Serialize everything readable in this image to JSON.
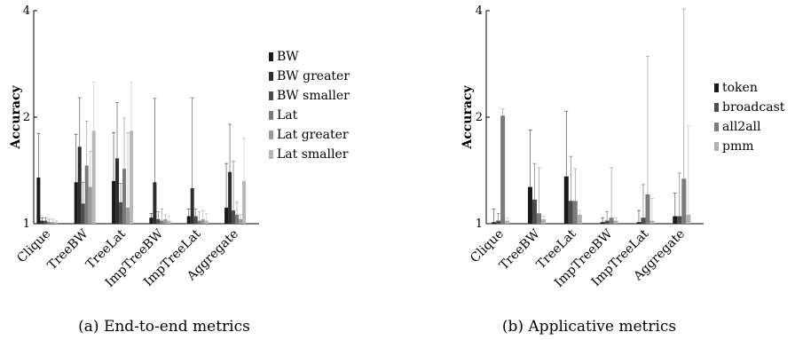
{
  "chart_data": [
    {
      "type": "bar",
      "caption": "(a) End-to-end metrics",
      "ylabel": "Accuracy",
      "ylim": [
        1,
        4
      ],
      "yscale": "log",
      "yticks": [
        "1",
        "2",
        "4"
      ],
      "categories": [
        "Clique",
        "TreeBW",
        "TreeLat",
        "ImpTreeBW",
        "ImpTreeLat",
        "Aggregate"
      ],
      "legend_position": "right",
      "series": [
        {
          "name": "BW",
          "color": "#1a1a1a",
          "values": [
            1.35,
            1.31,
            1.32,
            1.04,
            1.05,
            1.11
          ],
          "err_hi": [
            1.8,
            1.79,
            1.81,
            1.07,
            1.1,
            1.48
          ],
          "err_lo": [
            1.02,
            1.11,
            1.12,
            1.01,
            1.01,
            1.04
          ]
        },
        {
          "name": "BW greater",
          "color": "#2e2e2e",
          "values": [
            1.02,
            1.65,
            1.53,
            1.31,
            1.26,
            1.4
          ],
          "err_hi": [
            1.04,
            2.27,
            2.2,
            2.26,
            2.27,
            1.91
          ],
          "err_lo": [
            1.01,
            1.16,
            1.2,
            1.03,
            1.04,
            1.13
          ]
        },
        {
          "name": "BW smaller",
          "color": "#4d4d4d",
          "values": [
            1.02,
            1.14,
            1.15,
            1.03,
            1.05,
            1.09
          ],
          "err_hi": [
            1.04,
            1.31,
            1.3,
            1.08,
            1.1,
            1.5
          ],
          "err_lo": [
            1.01,
            1.04,
            1.04,
            1.01,
            1.01,
            1.03
          ]
        },
        {
          "name": "Lat",
          "color": "#7a7a7a",
          "values": [
            1.01,
            1.46,
            1.43,
            1.02,
            1.02,
            1.06
          ],
          "err_hi": [
            1.03,
            1.95,
            1.99,
            1.1,
            1.08,
            1.15
          ],
          "err_lo": [
            1.0,
            1.2,
            1.15,
            1.0,
            1.0,
            1.02
          ]
        },
        {
          "name": "Lat greater",
          "color": "#999999",
          "values": [
            1.01,
            1.27,
            1.11,
            1.03,
            1.03,
            1.03
          ],
          "err_hi": [
            1.03,
            1.6,
            1.81,
            1.06,
            1.09,
            1.06
          ],
          "err_lo": [
            1.0,
            1.09,
            1.05,
            1.01,
            1.01,
            1.01
          ]
        },
        {
          "name": "Lat smaller",
          "color": "#b8b8b8",
          "values": [
            1.01,
            1.83,
            1.83,
            1.02,
            1.02,
            1.32
          ],
          "err_hi": [
            1.02,
            2.51,
            2.51,
            1.05,
            1.07,
            1.75
          ],
          "err_lo": [
            1.0,
            1.32,
            1.32,
            1.0,
            1.0,
            1.1
          ]
        }
      ]
    },
    {
      "type": "bar",
      "caption": "(b) Applicative metrics",
      "ylabel": "Accuracy",
      "ylim": [
        1,
        4
      ],
      "yscale": "log",
      "yticks": [
        "1",
        "2",
        "4"
      ],
      "categories": [
        "Clique",
        "TreeBW",
        "TreeLat",
        "ImpTreeBW",
        "ImpTreeLat",
        "Aggregate"
      ],
      "legend_position": "right",
      "series": [
        {
          "name": "token",
          "color": "#1a1a1a",
          "values": [
            1.01,
            1.27,
            1.36,
            1.01,
            1.01,
            1.05
          ],
          "err_hi": [
            1.1,
            1.84,
            2.08,
            1.04,
            1.09,
            1.22
          ],
          "err_lo": [
            1.0,
            1.1,
            1.15,
            1.0,
            1.0,
            1.02
          ]
        },
        {
          "name": "broadcast",
          "color": "#4d4d4d",
          "values": [
            1.02,
            1.17,
            1.16,
            1.02,
            1.04,
            1.05
          ],
          "err_hi": [
            1.07,
            1.48,
            1.55,
            1.08,
            1.29,
            1.39
          ],
          "err_lo": [
            1.0,
            1.06,
            1.06,
            1.0,
            1.01,
            1.02
          ]
        },
        {
          "name": "all2all",
          "color": "#7a7a7a",
          "values": [
            2.02,
            1.07,
            1.16,
            1.04,
            1.21,
            1.34
          ],
          "err_hi": [
            2.11,
            1.44,
            1.43,
            1.44,
            2.97,
            4.05
          ],
          "err_lo": [
            1.9,
            1.02,
            1.05,
            1.01,
            1.05,
            1.07
          ]
        },
        {
          "name": "pmm",
          "color": "#b0b0b0",
          "values": [
            1.02,
            1.03,
            1.06,
            1.02,
            1.02,
            1.06
          ],
          "err_hi": [
            1.04,
            1.05,
            1.09,
            1.04,
            1.18,
            1.89
          ],
          "err_lo": [
            1.0,
            1.0,
            1.01,
            1.0,
            1.0,
            1.02
          ]
        }
      ]
    }
  ]
}
